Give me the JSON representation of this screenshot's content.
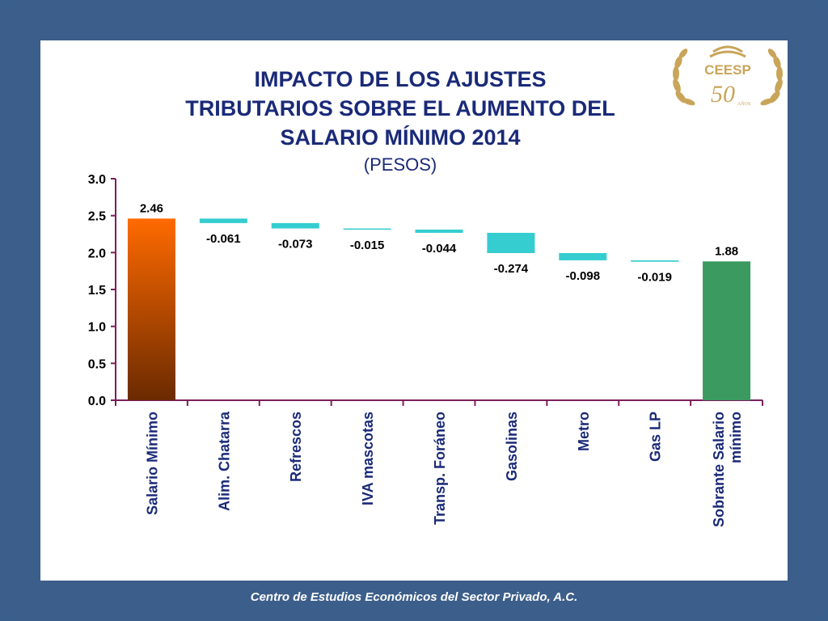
{
  "slide": {
    "title_lines": [
      "IMPACTO DE LOS AJUSTES",
      "TRIBUTARIOS SOBRE EL AUMENTO DEL",
      "SALARIO MÍNIMO 2014"
    ],
    "subtitle": "(PESOS)",
    "footer": "Centro de Estudios Económicos del Sector Privado, A.C.",
    "logo": {
      "text": "CEESP",
      "years": "50",
      "years_label": "AÑOS"
    }
  },
  "colors": {
    "frame": "#3c5e8b",
    "title": "#1a2a78",
    "axis": "#7a1f5c",
    "start_bar_top": "#ff6a00",
    "start_bar_bottom": "#6b2a00",
    "delta_bar": "#35cdd0",
    "end_bar": "#3a9a60",
    "logo_gold": "#c9a55a"
  },
  "chart_data": {
    "type": "bar",
    "subtype": "waterfall",
    "title": "IMPACTO DE LOS AJUSTES TRIBUTARIOS SOBRE EL AUMENTO DEL SALARIO MÍNIMO 2014",
    "subtitle": "(PESOS)",
    "xlabel": "",
    "ylabel": "",
    "ylim": [
      0,
      3.0
    ],
    "yticks": [
      "0.0",
      "0.5",
      "1.0",
      "1.5",
      "2.0",
      "2.5",
      "3.0"
    ],
    "ytick_values": [
      0,
      0.5,
      1.0,
      1.5,
      2.0,
      2.5,
      3.0
    ],
    "grid": false,
    "legend": "none",
    "categories": [
      "Salario Mínimo",
      "Alim. Chatarra",
      "Refrescos",
      "IVA mascotas",
      "Transp. Foráneo",
      "Gasolinas",
      "Metro",
      "Gas LP",
      "Sobrante Salario mínimo"
    ],
    "category_lines": [
      [
        "Salario Mínimo"
      ],
      [
        "Alim. Chatarra"
      ],
      [
        "Refrescos"
      ],
      [
        "IVA mascotas"
      ],
      [
        "Transp. Foráneo"
      ],
      [
        "Gasolinas"
      ],
      [
        "Metro"
      ],
      [
        "Gas LP"
      ],
      [
        "Sobrante Salario",
        "mínimo"
      ]
    ],
    "values": [
      2.46,
      -0.061,
      -0.073,
      -0.015,
      -0.044,
      -0.274,
      -0.098,
      -0.019,
      1.88
    ],
    "bar_kinds": [
      "total",
      "delta",
      "delta",
      "delta",
      "delta",
      "delta",
      "delta",
      "delta",
      "total"
    ],
    "data_labels": [
      "2.46",
      "-0.061",
      "-0.073",
      "-0.015",
      "-0.044",
      "-0.274",
      "-0.098",
      "-0.019",
      "1.88"
    ]
  }
}
